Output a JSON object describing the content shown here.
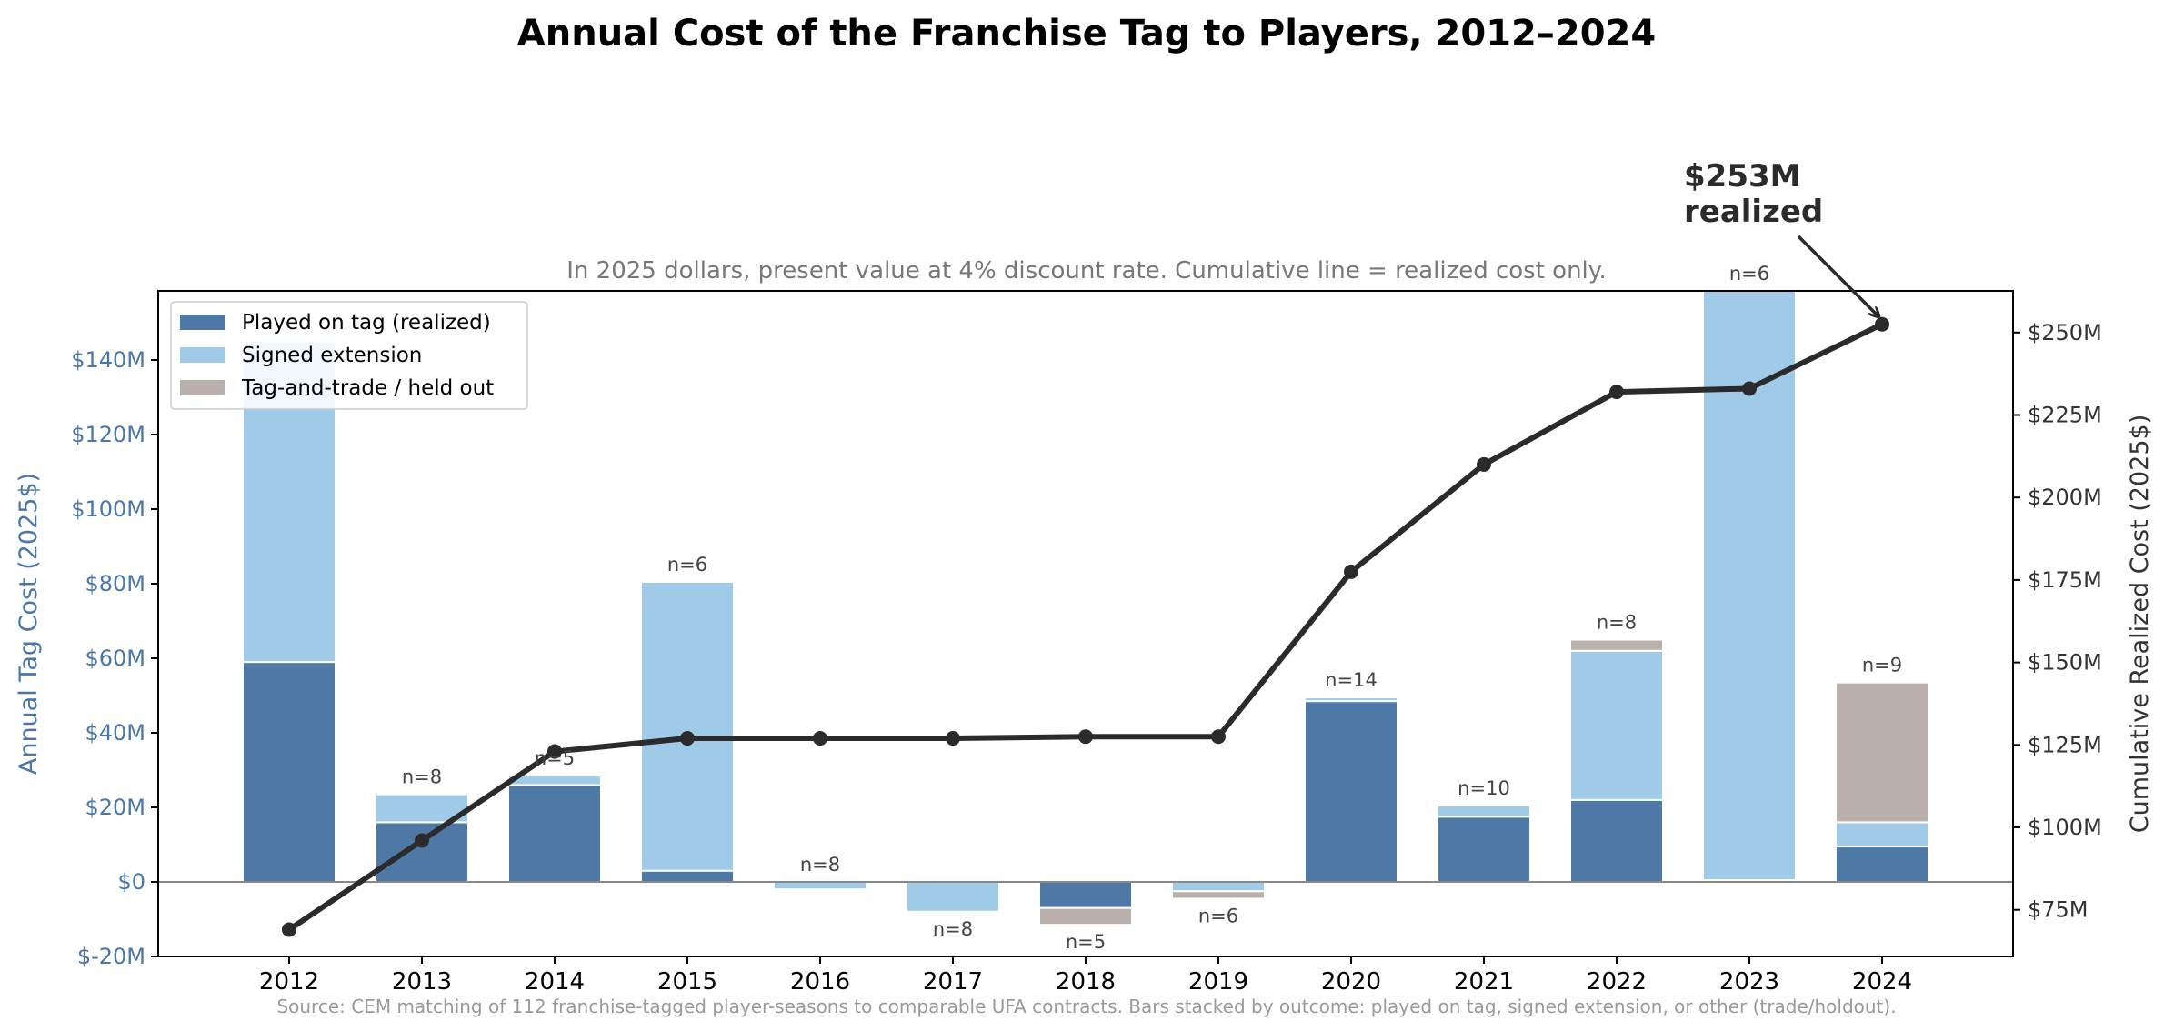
{
  "chart_data": {
    "type": "bar",
    "title": "Annual Cost of the Franchise Tag to Players, 2012–2024",
    "subtitle": "In 2025 dollars, present value at 4% discount rate. Cumulative line = realized cost only.",
    "source": "Source: CEM matching of 112 franchise-tagged player-seasons to comparable UFA contracts. Bars stacked by outcome: played on tag, signed extension, or other (trade/holdout).",
    "ylabel_left": "Annual Tag Cost (2025$)",
    "ylabel_right": "Cumulative Realized Cost (2025$)",
    "ylim_left": [
      -20,
      160
    ],
    "ylim_right": [
      62,
      260
    ],
    "yticks_left": [
      -20,
      0,
      20,
      40,
      60,
      80,
      100,
      120,
      140
    ],
    "yticks_left_labels": [
      "$-20M",
      "$0",
      "$20M",
      "$40M",
      "$60M",
      "$80M",
      "$100M",
      "$120M",
      "$140M"
    ],
    "yticks_right": [
      75,
      100,
      125,
      150,
      175,
      200,
      225,
      250
    ],
    "yticks_right_labels": [
      "$75M",
      "$100M",
      "$125M",
      "$150M",
      "$175M",
      "$200M",
      "$225M",
      "$250M"
    ],
    "categories": [
      "2012",
      "2013",
      "2014",
      "2015",
      "2016",
      "2017",
      "2018",
      "2019",
      "2020",
      "2021",
      "2022",
      "2023",
      "2024"
    ],
    "series": [
      {
        "name": "Played on tag (realized)",
        "color": "#4e79a7",
        "values": [
          59,
          16,
          26,
          3,
          0,
          0,
          -7,
          0,
          48.5,
          17.5,
          22,
          0.5,
          9.5
        ]
      },
      {
        "name": "Signed extension",
        "color": "#a0cbe8",
        "values": [
          86,
          7.5,
          2.5,
          77.5,
          -2,
          -8,
          0,
          -2.5,
          1,
          3,
          40,
          160,
          6.5
        ]
      },
      {
        "name": "Tag-and-trade / held out",
        "color": "#bab0ac",
        "values": [
          0,
          0,
          0,
          0,
          0,
          0,
          -4.5,
          -2,
          0,
          0,
          3,
          0,
          37.5
        ]
      }
    ],
    "n_labels": [
      "",
      "n=8",
      "n=5",
      "n=6",
      "n=8",
      "n=8",
      "n=5",
      "n=6",
      "n=14",
      "n=10",
      "n=8",
      "n=6",
      "n=9"
    ],
    "cumulative_line": {
      "name": "Cumulative realized cost",
      "color": "#2b2b2b",
      "values": [
        69,
        96,
        123,
        127,
        127,
        127,
        127.5,
        127.5,
        177.5,
        210,
        232,
        233,
        252.5
      ]
    },
    "annotation": {
      "line1": "$253M",
      "line2": "realized"
    },
    "legend_position": "top-left",
    "grid": false
  }
}
